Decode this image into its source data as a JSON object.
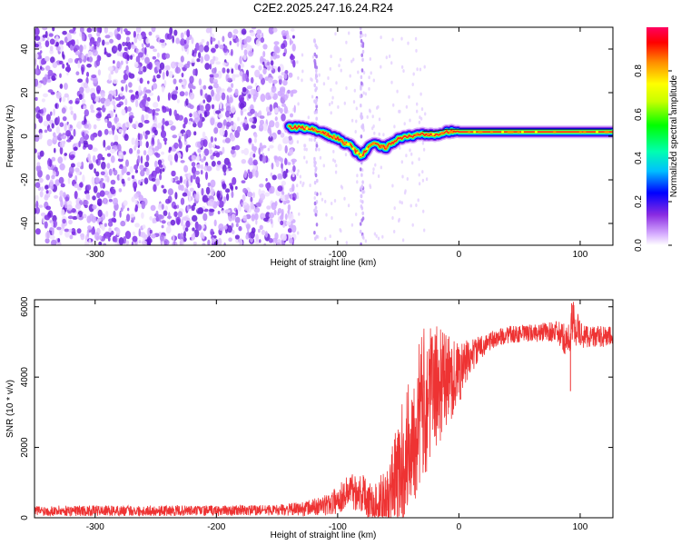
{
  "title": "C2E2.2025.247.16.24.R24",
  "chart_data": [
    {
      "type": "heatmap",
      "title": "C2E2.2025.247.16.24.R24",
      "xlabel": "Height of straight line (km)",
      "ylabel": "Frequency (Hz)",
      "xlim": [
        -350,
        127
      ],
      "ylim": [
        -50,
        50
      ],
      "xticks": [
        -300,
        -200,
        -100,
        0,
        100
      ],
      "yticks": [
        -40,
        -20,
        0,
        20,
        40
      ],
      "colorbar": {
        "label": "Normalized spectral amplitude",
        "range": [
          0,
          1
        ],
        "ticks": [
          0.0,
          0.2,
          0.4,
          0.6,
          0.8
        ]
      },
      "noise_region": {
        "x": [
          -350,
          -135
        ],
        "description": "dense scattered noise"
      },
      "signal_ridge": {
        "x": [
          -140,
          -130,
          -120,
          -110,
          -100,
          -95,
          -90,
          -85,
          -80,
          -75,
          -70,
          -65,
          -60,
          -55,
          -50,
          -40,
          -30,
          -20,
          -10,
          0,
          20,
          40,
          60,
          80,
          100,
          127
        ],
        "freq": [
          4,
          4,
          3,
          1,
          -1,
          -3,
          -4,
          -7,
          -9,
          -5,
          -3,
          -5,
          -5,
          -3,
          -1,
          0,
          1,
          1,
          2,
          2,
          2,
          2,
          2,
          2,
          2,
          2
        ]
      },
      "vertical_streaks": [
        -118,
        -80
      ]
    },
    {
      "type": "line",
      "xlabel": "Height of straight line (km)",
      "ylabel": "SNR (10 * v/v)",
      "xlim": [
        -350,
        127
      ],
      "ylim": [
        0,
        6200
      ],
      "xticks": [
        -300,
        -200,
        -100,
        0,
        100
      ],
      "yticks": [
        0,
        2000,
        4000,
        6000
      ],
      "color": "#ee3333",
      "series": [
        {
          "name": "SNR",
          "x": [
            -350,
            -300,
            -250,
            -200,
            -150,
            -130,
            -110,
            -100,
            -90,
            -80,
            -70,
            -60,
            -50,
            -40,
            -30,
            -20,
            -10,
            0,
            10,
            20,
            30,
            40,
            60,
            80,
            90,
            95,
            100,
            110,
            127
          ],
          "y": [
            200,
            200,
            200,
            200,
            220,
            250,
            350,
            500,
            800,
            700,
            400,
            500,
            1200,
            2200,
            3200,
            3700,
            3900,
            4100,
            4600,
            4900,
            5100,
            5200,
            5250,
            5300,
            5000,
            5600,
            5200,
            5150,
            5150
          ],
          "band": [
            150,
            150,
            150,
            150,
            150,
            200,
            300,
            400,
            500,
            600,
            600,
            900,
            1600,
            2000,
            2200,
            1800,
            1400,
            900,
            500,
            300,
            250,
            250,
            250,
            300,
            500,
            700,
            400,
            300,
            300
          ]
        }
      ],
      "spikes": [
        {
          "x": 92,
          "y": 3600
        },
        {
          "x": 93,
          "y": 6100
        }
      ]
    }
  ]
}
